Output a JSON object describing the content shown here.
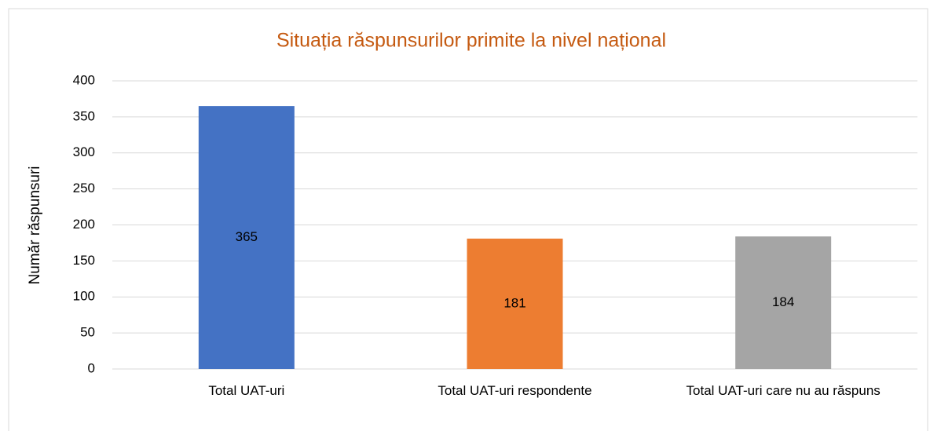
{
  "chart_data": {
    "type": "bar",
    "title": "Situația răspunsurilor primite la nivel național",
    "y_axis_label": "Număr răspunsuri",
    "categories": [
      "Total UAT-uri",
      "Total UAT-uri respondente",
      "Total UAT-uri care nu au răspuns"
    ],
    "values": [
      365,
      181,
      184
    ],
    "colors": [
      "#4472c4",
      "#ed7d31",
      "#a5a5a5"
    ],
    "ylim": [
      0,
      400
    ],
    "yticks": [
      0,
      50,
      100,
      150,
      200,
      250,
      300,
      350,
      400
    ],
    "grid": true
  }
}
